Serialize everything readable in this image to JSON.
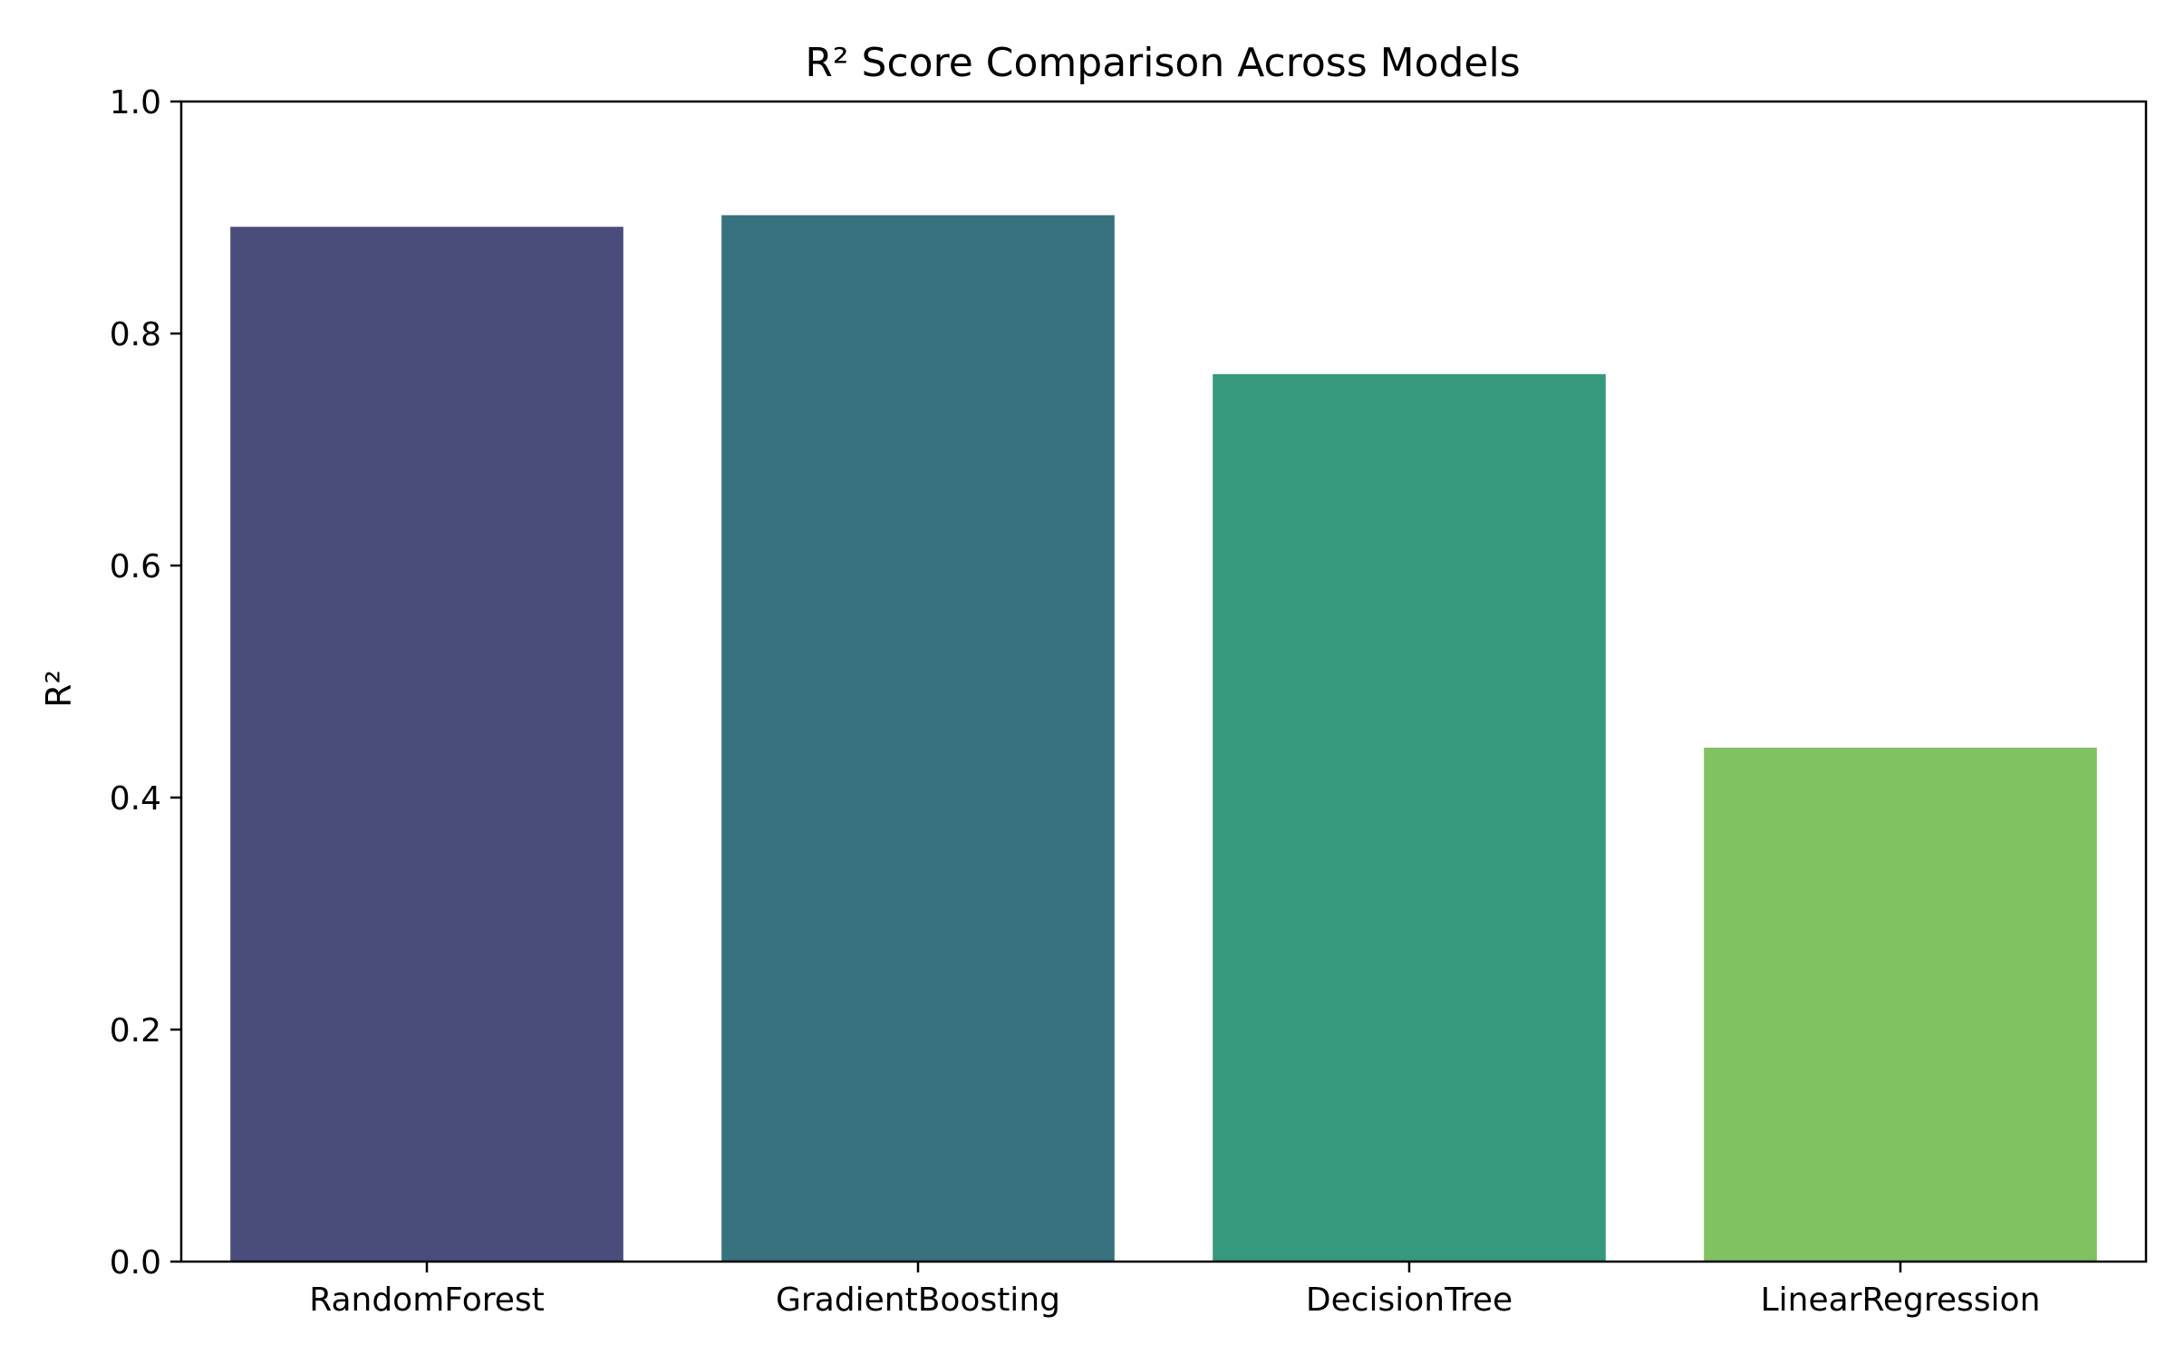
{
  "chart_data": {
    "type": "bar",
    "title": "R² Score Comparison Across Models",
    "xlabel": "",
    "ylabel": "R²",
    "categories": [
      "RandomForest",
      "GradientBoosting",
      "DecisionTree",
      "LinearRegression"
    ],
    "values": [
      0.892,
      0.902,
      0.765,
      0.443
    ],
    "colors": [
      "#4a4c7c",
      "#37727e",
      "#36987c",
      "#80c162"
    ],
    "ylim": [
      0,
      1.0
    ],
    "yticks": [
      "0.0",
      "0.2",
      "0.4",
      "0.6",
      "0.8",
      "1.0"
    ],
    "grid": false,
    "legend": "none"
  }
}
